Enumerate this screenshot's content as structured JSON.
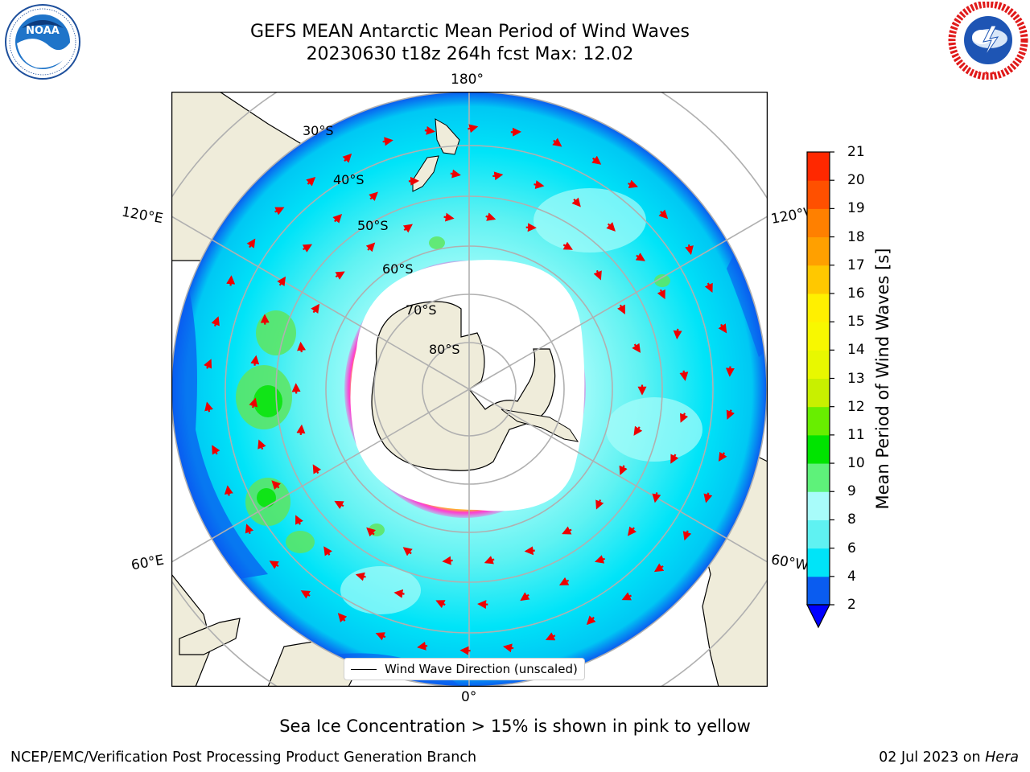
{
  "title": {
    "line1": "GEFS MEAN Antarctic Mean Period of Wind Waves",
    "line2": "20230630 t18z 264h fcst   Max: 12.02"
  },
  "logos": {
    "left": "NOAA",
    "left_ring_text": "NATIONAL OCEANIC AND ATMOSPHERIC ADMINISTRATION · U.S. DEPARTMENT OF COMMERCE",
    "right_ring_text": "NATIONAL WEATHER SERVICE"
  },
  "map": {
    "longitude_labels": {
      "top": "180°",
      "bottom": "0°",
      "upper_left": "120°E",
      "lower_left": "60°E",
      "upper_right": "120°W",
      "lower_right": "60°W"
    },
    "latitude_labels": [
      "30°S",
      "40°S",
      "50°S",
      "60°S",
      "70°S",
      "80°S"
    ],
    "legend": "Wind Wave Direction (unscaled)",
    "colors": {
      "land": "#efecda",
      "ocean_low": "#0a5cf0",
      "ocean_mid": "#00e4f8",
      "ocean_light": "#5ff2f2",
      "ocean_pale": "#a8fcfa",
      "wave_green": "#5ee660",
      "ice_white": "#ffffff",
      "ice_pink": "#ff3cd2",
      "ice_yellow": "#ffd200",
      "arrow": "#ee0000"
    }
  },
  "colorbar": {
    "label": "Mean Period of Wind Waves [s]",
    "ticks": [
      "2",
      "4",
      "6",
      "8",
      "9",
      "10",
      "11",
      "12",
      "13",
      "14",
      "15",
      "16",
      "17",
      "18",
      "19",
      "20",
      "21"
    ],
    "colors": [
      "#0a5cf0",
      "#00e4f8",
      "#5ff2f2",
      "#a8fcfa",
      "#5ef27a",
      "#00e400",
      "#68ee00",
      "#c8f000",
      "#e8f800",
      "#f8f800",
      "#fff000",
      "#ffc800",
      "#ffa000",
      "#ff8000",
      "#ff5000",
      "#ff2800"
    ],
    "under_color": "#0000ff",
    "top_color": "#ff0000"
  },
  "caption": "Sea Ice Concentration > 15% is shown in pink to yellow",
  "footer": {
    "left": "NCEP/EMC/Verification Post Processing Product Generation Branch",
    "right_prefix": "02 Jul 2023 on ",
    "right_host": "Hera"
  }
}
